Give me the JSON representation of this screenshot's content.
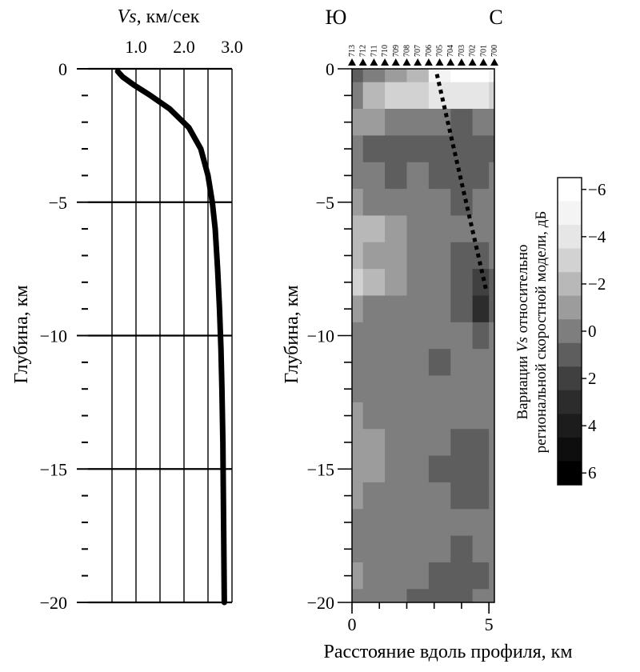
{
  "chart_data": [
    {
      "type": "line",
      "title": "",
      "xlabel_italic": "Vs",
      "xlabel_unit": ", км/сек",
      "ylabel": "Глубина, км",
      "xlim": [
        0.0,
        3.0
      ],
      "ylim": [
        -20,
        0
      ],
      "x_ticks": [
        {
          "value": 1.0,
          "label": "1.0"
        },
        {
          "value": 2.0,
          "label": "2.0"
        },
        {
          "value": 3.0,
          "label": "3.0"
        }
      ],
      "y_ticks": [
        {
          "value": 0,
          "label": "0"
        },
        {
          "value": -5,
          "label": "−5"
        },
        {
          "value": -10,
          "label": "−10"
        },
        {
          "value": -15,
          "label": "−15"
        },
        {
          "value": -20,
          "label": "−20"
        }
      ],
      "grid": true,
      "series": [
        {
          "x": [
            0.62,
            0.72,
            0.95,
            1.3,
            1.7,
            2.1,
            2.35,
            2.5,
            2.59,
            2.65,
            2.7,
            2.74,
            2.77,
            2.79,
            2.81,
            2.82,
            2.83,
            2.84
          ],
          "y": [
            -0.1,
            -0.3,
            -0.6,
            -1.0,
            -1.5,
            -2.2,
            -3.0,
            -4.0,
            -5.0,
            -6.0,
            -7.5,
            -9.0,
            -10.5,
            -12.0,
            -14.0,
            -16.0,
            -18.0,
            -20.0
          ]
        }
      ]
    },
    {
      "type": "heatmap",
      "title": "",
      "top_left_label": "Ю",
      "top_right_label": "С",
      "xlabel": "Расстояние вдоль профиля, км",
      "ylabel": "Глубина, км",
      "xlim": [
        0,
        5.2
      ],
      "ylim": [
        -20,
        0
      ],
      "x_ticks": [
        {
          "value": 0,
          "label": "0"
        },
        {
          "value": 5,
          "label": "5"
        }
      ],
      "y_ticks": [
        {
          "value": 0,
          "label": "0"
        },
        {
          "value": -5,
          "label": "−5"
        },
        {
          "value": -10,
          "label": "−10"
        },
        {
          "value": -15,
          "label": "−15"
        },
        {
          "value": -20,
          "label": "−20"
        }
      ],
      "stations": [
        "713",
        "712",
        "711",
        "710",
        "709",
        "708",
        "707",
        "706",
        "705",
        "704",
        "703",
        "702",
        "701",
        "700"
      ],
      "colorbar": {
        "label": "Вариации Vs относительно",
        "label_line1_prefix": "Вариации ",
        "label_line1_italic": "Vs",
        "label_line1_suffix": " относительно",
        "label_line2": "региональной скоростной модели, дБ",
        "levels": [
          -6,
          -5,
          -4,
          -3,
          -2,
          -1,
          0,
          1,
          2,
          3,
          4,
          5,
          6
        ],
        "colors": [
          "#ffffff",
          "#f4f4f4",
          "#e6e6e6",
          "#d2d2d2",
          "#b8b8b8",
          "#9c9c9c",
          "#7e7e7e",
          "#5e5e5e",
          "#404040",
          "#2c2c2c",
          "#1c1c1c",
          "#0e0e0e",
          "#000000"
        ],
        "tick_labels": [
          {
            "value": -6,
            "label": "−6"
          },
          {
            "value": -4,
            "label": "−4"
          },
          {
            "value": -2,
            "label": "−2"
          },
          {
            "value": 0,
            "label": "0"
          },
          {
            "value": 2,
            "label": "2"
          },
          {
            "value": 4,
            "label": "4"
          },
          {
            "value": 6,
            "label": "6"
          }
        ]
      },
      "dotted_line": {
        "x": [
          3.1,
          4.9
        ],
        "y": [
          -0.2,
          -8.3
        ]
      },
      "field": {
        "x": [
          0.0,
          0.8,
          1.6,
          2.4,
          3.2,
          4.0,
          4.8,
          5.2
        ],
        "y": [
          0,
          -1,
          -2,
          -3,
          -4,
          -5,
          -6,
          -7,
          -8,
          -9,
          -10,
          -11,
          -12,
          -13,
          -14,
          -15,
          -16,
          -17,
          -18,
          -19,
          -20
        ],
        "values": [
          [
            1,
            0,
            -1,
            -2,
            -5,
            -6,
            -6,
            -5
          ],
          [
            0,
            -2,
            -3,
            -3,
            -4,
            -4,
            -4,
            -3
          ],
          [
            -1,
            -1,
            0,
            0,
            0,
            1,
            0,
            0
          ],
          [
            0,
            1,
            1,
            1,
            1,
            1,
            1,
            1
          ],
          [
            0,
            0,
            1,
            0,
            1,
            1,
            1,
            0
          ],
          [
            -1,
            0,
            0,
            0,
            0,
            1,
            0,
            0
          ],
          [
            -2,
            -2,
            -1,
            0,
            0,
            0,
            0,
            0
          ],
          [
            -2,
            -1,
            -1,
            0,
            0,
            1,
            1,
            0
          ],
          [
            -3,
            -2,
            -1,
            0,
            0,
            1,
            2,
            1
          ],
          [
            -1,
            0,
            0,
            0,
            0,
            1,
            3,
            1
          ],
          [
            0,
            0,
            0,
            0,
            0,
            0,
            1,
            0
          ],
          [
            0,
            0,
            0,
            0,
            1,
            0,
            0,
            0
          ],
          [
            0,
            0,
            0,
            0,
            0,
            0,
            0,
            0
          ],
          [
            -1,
            0,
            0,
            0,
            0,
            0,
            0,
            0
          ],
          [
            -1,
            -1,
            0,
            0,
            0,
            1,
            1,
            0
          ],
          [
            -1,
            -1,
            0,
            0,
            1,
            1,
            1,
            0
          ],
          [
            -1,
            0,
            0,
            0,
            0,
            1,
            1,
            0
          ],
          [
            0,
            0,
            0,
            0,
            0,
            0,
            0,
            0
          ],
          [
            0,
            0,
            0,
            0,
            0,
            1,
            0,
            0
          ],
          [
            -1,
            0,
            0,
            0,
            1,
            1,
            1,
            0
          ],
          [
            0,
            0,
            0,
            1,
            1,
            1,
            0,
            0
          ]
        ]
      }
    }
  ]
}
